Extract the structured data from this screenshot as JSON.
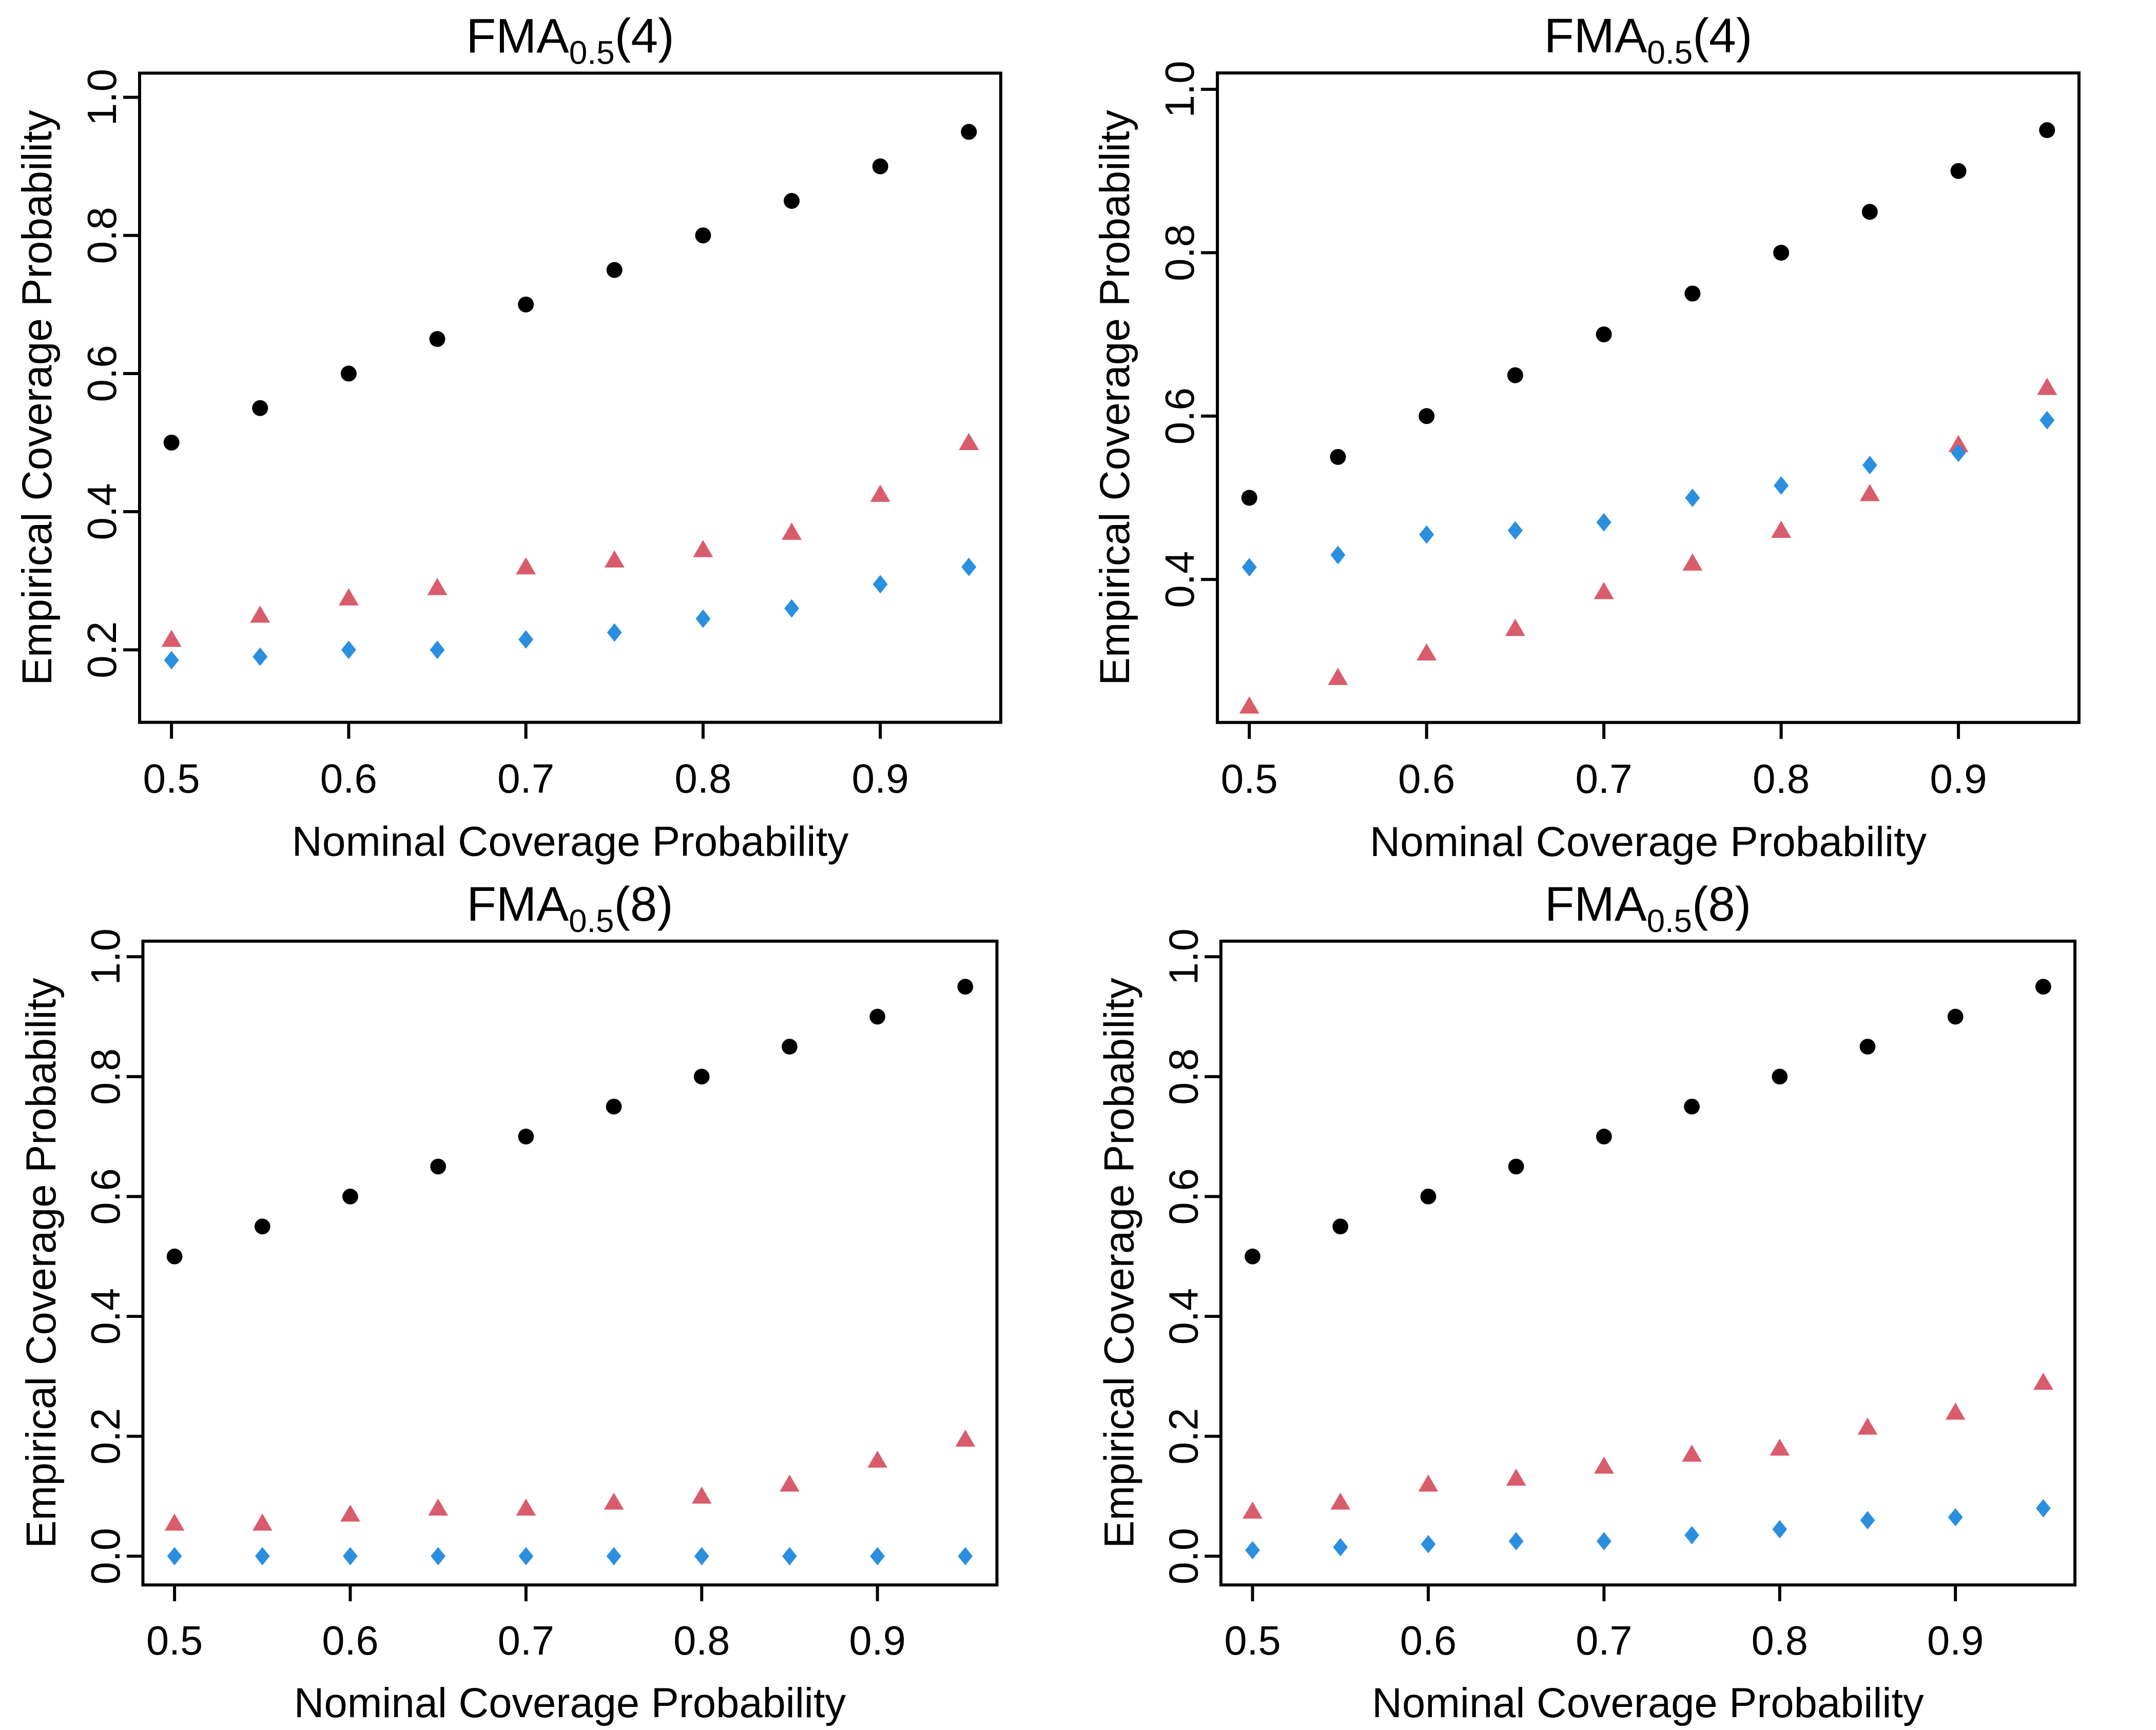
{
  "figure": {
    "background": "#ffffff",
    "layout": "2x2 grid of scatter panels",
    "legend": "none"
  },
  "chart_data": [
    {
      "type": "scatter",
      "panel": "top-left",
      "title_base": "FMA",
      "title_sub": "0.5",
      "title_arg": "(4)",
      "title_plain": "FMA0.5(4)",
      "xlabel": "Nominal Coverage Probability",
      "ylabel": "Empirical Coverage Probability",
      "grid": false,
      "legend": "none",
      "xlim": [
        0.482,
        0.968
      ],
      "ylim": [
        0.095,
        1.035
      ],
      "xtick_vals": [
        0.5,
        0.6,
        0.7,
        0.8,
        0.9
      ],
      "xticks": [
        "0.5",
        "0.6",
        "0.7",
        "0.8",
        "0.9"
      ],
      "ytick_vals": [
        0.2,
        0.4,
        0.6,
        0.8,
        1.0
      ],
      "yticks": [
        "0.2",
        "0.4",
        "0.6",
        "0.8",
        "1.0"
      ],
      "x": [
        0.5,
        0.55,
        0.6,
        0.65,
        0.7,
        0.75,
        0.8,
        0.85,
        0.9,
        0.95
      ],
      "series": [
        {
          "name": "black-circles",
          "marker": "circle",
          "color": "#000000",
          "values": [
            0.5,
            0.55,
            0.6,
            0.65,
            0.7,
            0.75,
            0.8,
            0.85,
            0.9,
            0.95
          ]
        },
        {
          "name": "rose-triangles",
          "marker": "triangle",
          "color": "#d95c6c",
          "values": [
            0.215,
            0.25,
            0.275,
            0.29,
            0.32,
            0.33,
            0.345,
            0.37,
            0.425,
            0.5
          ]
        },
        {
          "name": "blue-diamonds",
          "marker": "diamond",
          "color": "#2b8fdf",
          "values": [
            0.185,
            0.19,
            0.2,
            0.2,
            0.215,
            0.225,
            0.245,
            0.26,
            0.295,
            0.32
          ]
        }
      ]
    },
    {
      "type": "scatter",
      "panel": "top-right",
      "title_base": "FMA",
      "title_sub": "0.5",
      "title_arg": "(4)",
      "title_plain": "FMA0.5(4)",
      "xlabel": "Nominal Coverage Probability",
      "ylabel": "Empirical Coverage Probability",
      "grid": false,
      "legend": "none",
      "xlim": [
        0.482,
        0.968
      ],
      "ylim": [
        0.225,
        1.02
      ],
      "xtick_vals": [
        0.5,
        0.6,
        0.7,
        0.8,
        0.9
      ],
      "xticks": [
        "0.5",
        "0.6",
        "0.7",
        "0.8",
        "0.9"
      ],
      "ytick_vals": [
        0.4,
        0.6,
        0.8,
        1.0
      ],
      "yticks": [
        "0.4",
        "0.6",
        "0.8",
        "1.0"
      ],
      "x": [
        0.5,
        0.55,
        0.6,
        0.65,
        0.7,
        0.75,
        0.8,
        0.85,
        0.9,
        0.95
      ],
      "series": [
        {
          "name": "black-circles",
          "marker": "circle",
          "color": "#000000",
          "values": [
            0.5,
            0.55,
            0.6,
            0.65,
            0.7,
            0.75,
            0.8,
            0.85,
            0.9,
            0.95
          ]
        },
        {
          "name": "rose-triangles",
          "marker": "triangle",
          "color": "#d95c6c",
          "values": [
            0.245,
            0.28,
            0.31,
            0.34,
            0.385,
            0.42,
            0.46,
            0.505,
            0.565,
            0.635
          ]
        },
        {
          "name": "blue-diamonds",
          "marker": "diamond",
          "color": "#2b8fdf",
          "values": [
            0.415,
            0.43,
            0.455,
            0.46,
            0.47,
            0.5,
            0.515,
            0.54,
            0.555,
            0.595
          ]
        }
      ]
    },
    {
      "type": "scatter",
      "panel": "bottom-left",
      "title_base": "FMA",
      "title_sub": "0.5",
      "title_arg": "(8)",
      "title_plain": "FMA0.5(8)",
      "xlabel": "Nominal Coverage Probability",
      "ylabel": "Empirical Coverage Probability",
      "grid": false,
      "legend": "none",
      "xlim": [
        0.482,
        0.968
      ],
      "ylim": [
        -0.048,
        1.026
      ],
      "xtick_vals": [
        0.5,
        0.6,
        0.7,
        0.8,
        0.9
      ],
      "xticks": [
        "0.5",
        "0.6",
        "0.7",
        "0.8",
        "0.9"
      ],
      "ytick_vals": [
        0.0,
        0.2,
        0.4,
        0.6,
        0.8,
        1.0
      ],
      "yticks": [
        "0.0",
        "0.2",
        "0.4",
        "0.6",
        "0.8",
        "1.0"
      ],
      "x": [
        0.5,
        0.55,
        0.6,
        0.65,
        0.7,
        0.75,
        0.8,
        0.85,
        0.9,
        0.95
      ],
      "series": [
        {
          "name": "black-circles",
          "marker": "circle",
          "color": "#000000",
          "values": [
            0.5,
            0.55,
            0.6,
            0.65,
            0.7,
            0.75,
            0.8,
            0.85,
            0.9,
            0.95
          ]
        },
        {
          "name": "rose-triangles",
          "marker": "triangle",
          "color": "#d95c6c",
          "values": [
            0.055,
            0.055,
            0.07,
            0.08,
            0.08,
            0.09,
            0.1,
            0.12,
            0.16,
            0.195
          ]
        },
        {
          "name": "blue-diamonds",
          "marker": "diamond",
          "color": "#2b8fdf",
          "values": [
            0.0,
            0.0,
            0.0,
            0.0,
            0.0,
            0.0,
            0.0,
            0.0,
            0.0,
            0.0
          ]
        }
      ]
    },
    {
      "type": "scatter",
      "panel": "bottom-right",
      "title_base": "FMA",
      "title_sub": "0.5",
      "title_arg": "(8)",
      "title_plain": "FMA0.5(8)",
      "xlabel": "Nominal Coverage Probability",
      "ylabel": "Empirical Coverage Probability",
      "grid": false,
      "legend": "none",
      "xlim": [
        0.482,
        0.968
      ],
      "ylim": [
        -0.048,
        1.026
      ],
      "xtick_vals": [
        0.5,
        0.6,
        0.7,
        0.8,
        0.9
      ],
      "xticks": [
        "0.5",
        "0.6",
        "0.7",
        "0.8",
        "0.9"
      ],
      "ytick_vals": [
        0.0,
        0.2,
        0.4,
        0.6,
        0.8,
        1.0
      ],
      "yticks": [
        "0.0",
        "0.2",
        "0.4",
        "0.6",
        "0.8",
        "1.0"
      ],
      "x": [
        0.5,
        0.55,
        0.6,
        0.65,
        0.7,
        0.75,
        0.8,
        0.85,
        0.9,
        0.95
      ],
      "series": [
        {
          "name": "black-circles",
          "marker": "circle",
          "color": "#000000",
          "values": [
            0.5,
            0.55,
            0.6,
            0.65,
            0.7,
            0.75,
            0.8,
            0.85,
            0.9,
            0.95
          ]
        },
        {
          "name": "rose-triangles",
          "marker": "triangle",
          "color": "#d95c6c",
          "values": [
            0.075,
            0.09,
            0.12,
            0.13,
            0.15,
            0.17,
            0.18,
            0.215,
            0.24,
            0.29
          ]
        },
        {
          "name": "blue-diamonds",
          "marker": "diamond",
          "color": "#2b8fdf",
          "values": [
            0.01,
            0.015,
            0.02,
            0.025,
            0.025,
            0.035,
            0.045,
            0.06,
            0.065,
            0.08
          ]
        }
      ]
    }
  ]
}
